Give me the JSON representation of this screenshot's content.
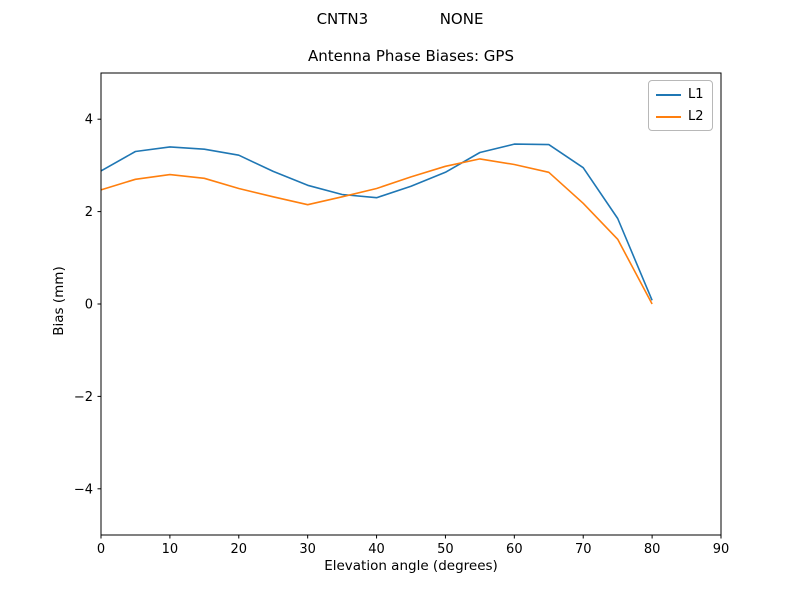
{
  "figure": {
    "suptitle": "CNTN3               NONE"
  },
  "chart_data": {
    "type": "line",
    "title": "Antenna Phase Biases: GPS",
    "suptitle": "CNTN3               NONE",
    "xlabel": "Elevation angle (degrees)",
    "ylabel": "Bias (mm)",
    "xlim": [
      0,
      90
    ],
    "ylim": [
      -5,
      5
    ],
    "xticks": [
      0,
      10,
      20,
      30,
      40,
      50,
      60,
      70,
      80,
      90
    ],
    "yticks": [
      -4,
      -2,
      0,
      2,
      4
    ],
    "grid": false,
    "legend_position": "upper right",
    "x": [
      0,
      5,
      10,
      15,
      20,
      25,
      30,
      35,
      40,
      45,
      50,
      55,
      60,
      65,
      70,
      75,
      80
    ],
    "series": [
      {
        "name": "L1",
        "color": "#1f77b4",
        "values": [
          2.88,
          3.3,
          3.4,
          3.35,
          3.22,
          2.87,
          2.57,
          2.37,
          2.3,
          2.55,
          2.85,
          3.28,
          3.46,
          3.45,
          2.95,
          1.85,
          0.08
        ]
      },
      {
        "name": "L2",
        "color": "#ff7f0e",
        "values": [
          2.47,
          2.7,
          2.8,
          2.72,
          2.5,
          2.32,
          2.15,
          2.32,
          2.5,
          2.75,
          2.98,
          3.14,
          3.02,
          2.85,
          2.18,
          1.4,
          0.0
        ]
      }
    ],
    "axis_color": "#000000",
    "line_width": 1.6
  }
}
